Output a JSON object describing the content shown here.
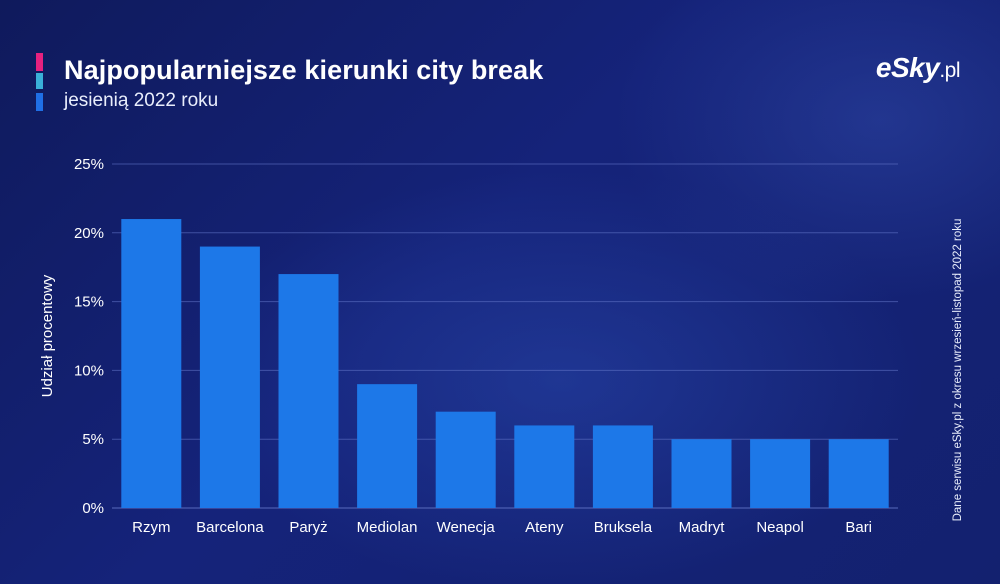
{
  "header": {
    "title": "Najpopularniejsze kierunki city break",
    "subtitle": "jesienią 2022 roku"
  },
  "logo": {
    "brand": "eSky",
    "domain": ".pl"
  },
  "source_note": "Dane serwisu eSky.pl z okresu wrzesień-listopad 2022 roku",
  "colors": {
    "bar": "#1d78e8",
    "gridline": "#5f72c4",
    "accent_top": "#e6217f",
    "accent_mid": "#3ab0d8",
    "accent_bottom": "#1f6fe6"
  },
  "chart_data": {
    "type": "bar",
    "title": "Najpopularniejsze kierunki city break",
    "subtitle": "jesienią 2022 roku",
    "xlabel": "",
    "ylabel": "Udział procentowy",
    "categories": [
      "Rzym",
      "Barcelona",
      "Paryż",
      "Mediolan",
      "Wenecja",
      "Ateny",
      "Bruksela",
      "Madryt",
      "Neapol",
      "Bari"
    ],
    "values": [
      21,
      19,
      17,
      9,
      7,
      6,
      6,
      5,
      5,
      5
    ],
    "ylim": [
      0,
      25
    ],
    "yticks": [
      0,
      5,
      10,
      15,
      20,
      25
    ],
    "ytick_labels": [
      "0%",
      "5%",
      "10%",
      "15%",
      "20%",
      "25%"
    ],
    "grid": true,
    "legend": "none"
  }
}
